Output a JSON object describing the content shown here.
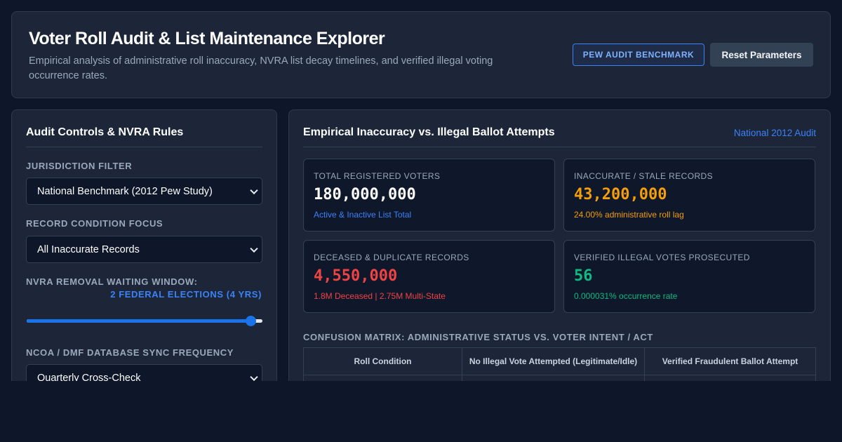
{
  "header": {
    "title": "Voter Roll Audit & List Maintenance Explorer",
    "subtitle": "Empirical analysis of administrative roll inaccuracy, NVRA list decay timelines, and verified illegal voting occurrence rates.",
    "benchmark_button": "PEW AUDIT BENCHMARK",
    "reset_button": "Reset Parameters"
  },
  "controls": {
    "title": "Audit Controls & NVRA Rules",
    "jurisdiction_label": "JURISDICTION FILTER",
    "jurisdiction_value": "National Benchmark (2012 Pew Study)",
    "condition_label": "RECORD CONDITION FOCUS",
    "condition_value": "All Inaccurate Records",
    "window_label": "NVRA REMOVAL WAITING WINDOW:",
    "window_value": "2 FEDERAL ELECTIONS (4 YRS)",
    "window_slider_fraction": 0.95,
    "sync_label": "NCOA / DMF DATABASE SYNC FREQUENCY",
    "sync_value": "Quarterly Cross-Check"
  },
  "results": {
    "title": "Empirical Inaccuracy vs. Illegal Ballot Attempts",
    "scope": "National 2012 Audit",
    "stats": [
      {
        "label": "TOTAL REGISTERED VOTERS",
        "value": "180,000,000",
        "sub": "Active & Inactive List Total",
        "value_color": "#ffffff",
        "sub_color": "#3b82f6"
      },
      {
        "label": "INACCURATE / STALE RECORDS",
        "value": "43,200,000",
        "sub": "24.00% administrative roll lag",
        "value_color": "#f59e0b",
        "sub_color": "#f59e0b"
      },
      {
        "label": "DECEASED & DUPLICATE RECORDS",
        "value": "4,550,000",
        "sub": "1.8M Deceased | 2.75M Multi-State",
        "value_color": "#ef4444",
        "sub_color": "#ef4444"
      },
      {
        "label": "VERIFIED ILLEGAL VOTES PROSECUTED",
        "value": "56",
        "sub": "0.000031% occurrence rate",
        "value_color": "#10b981",
        "sub_color": "#10b981"
      }
    ],
    "matrix_title": "CONFUSION MATRIX: ADMINISTRATIVE STATUS VS. VOTER INTENT / ACT",
    "matrix_headers": [
      "Roll Condition",
      "No Illegal Vote Attempted (Legitimate/Idle)",
      "Verified Fraudulent Ballot Attempt"
    ]
  }
}
